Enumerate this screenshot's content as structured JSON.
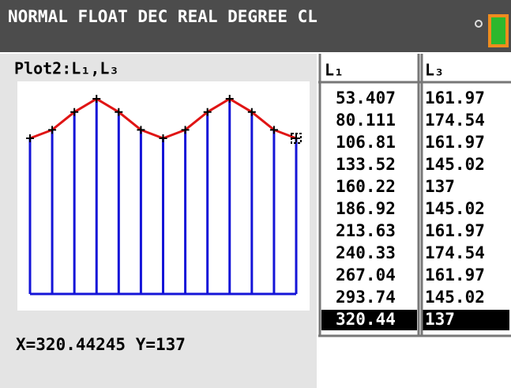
{
  "status_bar": {
    "mode": "NORMAL FLOAT DEC REAL DEGREE CL"
  },
  "plot": {
    "title": "Plot2:L₁,L₃",
    "x": [
      0,
      26.704,
      53.407,
      80.111,
      106.81,
      133.52,
      160.22,
      186.92,
      213.63,
      240.33,
      267.04,
      293.74,
      320.44
    ],
    "y": [
      137,
      145.02,
      161.97,
      174.54,
      161.97,
      145.02,
      137,
      145.02,
      161.97,
      174.54,
      161.97,
      145.02,
      137
    ],
    "xlim": [
      -15.2,
      336.6
    ],
    "ylim": [
      -26.7,
      191.1
    ],
    "stem_color": "#1414d8",
    "line_color": "#e01414"
  },
  "trace": "X=320.44245  Y=137",
  "table": {
    "headers": [
      "L₁",
      "L₃"
    ],
    "rows": [
      [
        "53.407",
        "161.97"
      ],
      [
        "80.111",
        "174.54"
      ],
      [
        "106.81",
        "161.97"
      ],
      [
        "133.52",
        "145.02"
      ],
      [
        "160.22",
        "137"
      ],
      [
        "186.92",
        "145.02"
      ],
      [
        "213.63",
        "161.97"
      ],
      [
        "240.33",
        "174.54"
      ],
      [
        "267.04",
        "161.97"
      ],
      [
        "293.74",
        "145.02"
      ],
      [
        "320.44",
        "137"
      ]
    ],
    "selected_row": 10
  }
}
